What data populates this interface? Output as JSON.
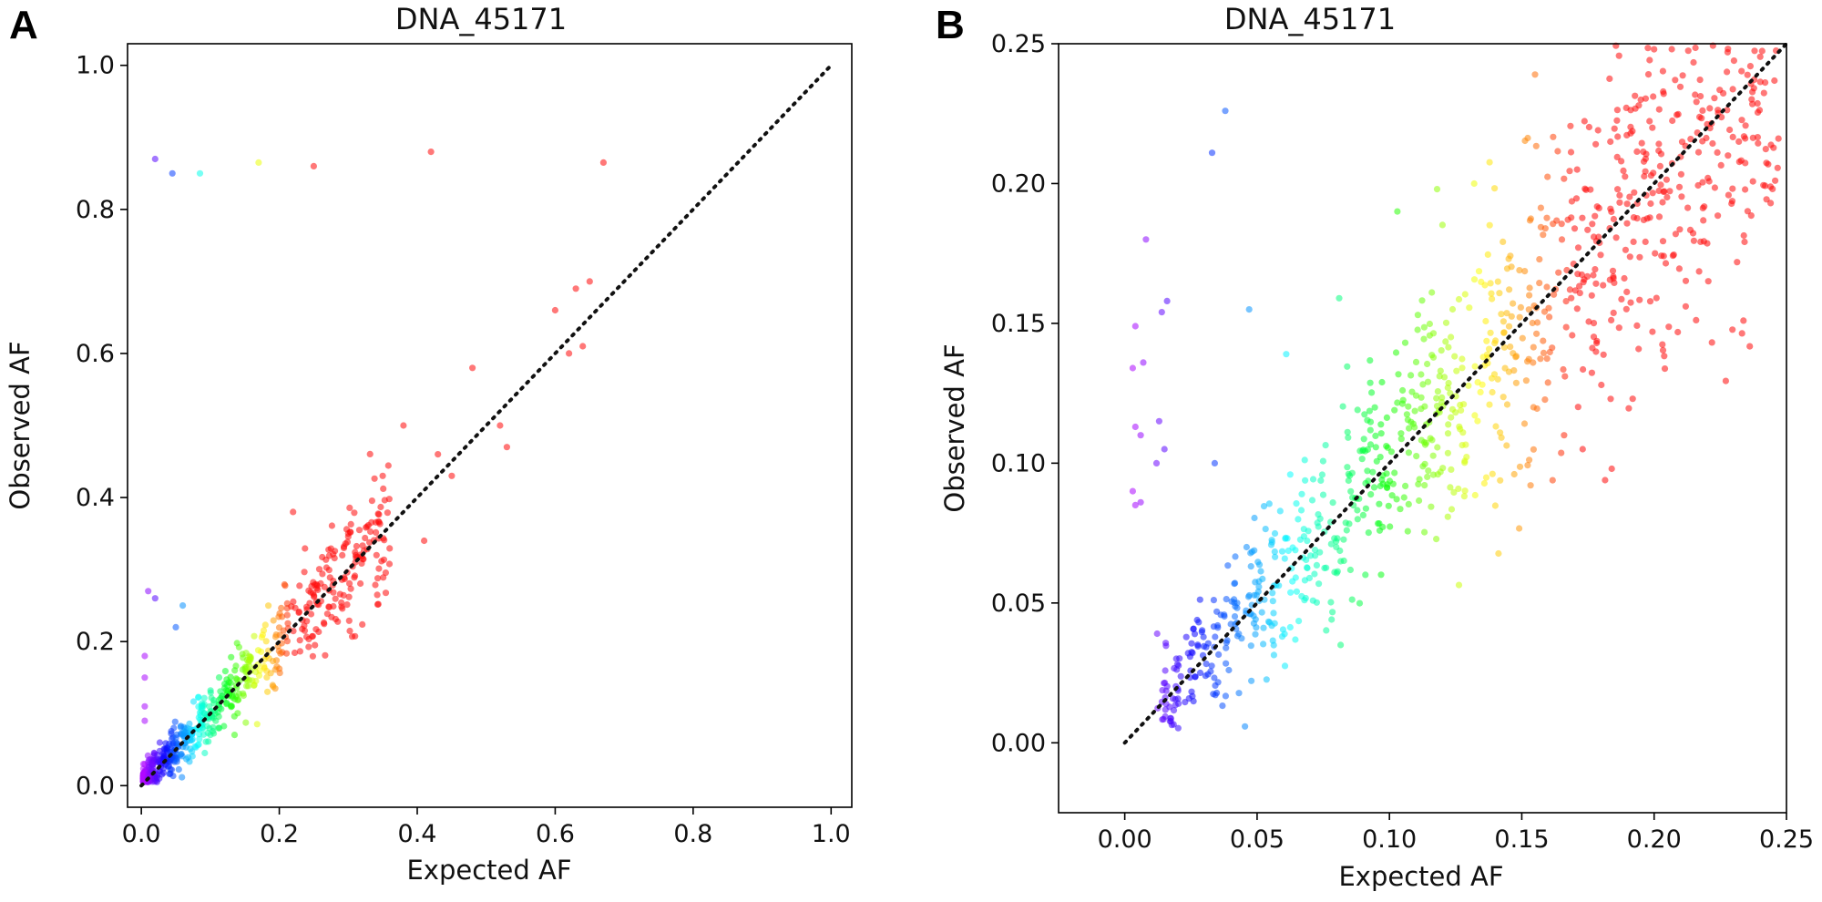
{
  "chart_data": [
    {
      "type": "scatter",
      "panel": "A",
      "title": "DNA_45171",
      "xlabel": "Expected AF",
      "ylabel": "Observed AF",
      "xlim": [
        -0.02,
        1.03
      ],
      "ylim": [
        -0.03,
        1.03
      ],
      "xticks": [
        "0.0",
        "0.2",
        "0.4",
        "0.6",
        "0.8",
        "1.0"
      ],
      "yticks": [
        "0.0",
        "0.2",
        "0.4",
        "0.6",
        "0.8",
        "1.0"
      ],
      "reference_line": {
        "style": "dotted",
        "color": "#111111",
        "from": [
          0,
          0
        ],
        "to": [
          1,
          1
        ]
      },
      "color_scale": "rainbow (purple → blue → cyan → green → yellow → orange → red)",
      "outliers": [
        {
          "x": 0.02,
          "y": 0.87
        },
        {
          "x": 0.045,
          "y": 0.85
        },
        {
          "x": 0.085,
          "y": 0.85
        },
        {
          "x": 0.17,
          "y": 0.865
        },
        {
          "x": 0.25,
          "y": 0.86
        },
        {
          "x": 0.42,
          "y": 0.88
        },
        {
          "x": 0.67,
          "y": 0.865
        },
        {
          "x": 0.01,
          "y": 0.27
        },
        {
          "x": 0.02,
          "y": 0.26
        },
        {
          "x": 0.005,
          "y": 0.18
        },
        {
          "x": 0.005,
          "y": 0.15
        },
        {
          "x": 0.005,
          "y": 0.11
        },
        {
          "x": 0.005,
          "y": 0.09
        },
        {
          "x": 0.6,
          "y": 0.66
        },
        {
          "x": 0.63,
          "y": 0.69
        },
        {
          "x": 0.65,
          "y": 0.7
        },
        {
          "x": 0.62,
          "y": 0.6
        },
        {
          "x": 0.64,
          "y": 0.61
        },
        {
          "x": 0.48,
          "y": 0.58
        },
        {
          "x": 0.38,
          "y": 0.5
        },
        {
          "x": 0.43,
          "y": 0.46
        },
        {
          "x": 0.41,
          "y": 0.34
        },
        {
          "x": 0.52,
          "y": 0.5
        },
        {
          "x": 0.53,
          "y": 0.47
        },
        {
          "x": 0.45,
          "y": 0.43
        },
        {
          "x": 0.35,
          "y": 0.43
        },
        {
          "x": 0.22,
          "y": 0.38
        },
        {
          "x": 0.3,
          "y": 0.35
        },
        {
          "x": 0.06,
          "y": 0.25
        },
        {
          "x": 0.05,
          "y": 0.22
        }
      ],
      "cluster": {
        "x_range": [
          0.0,
          0.4
        ],
        "note": "dense point cloud along y = x",
        "n_points": 700
      }
    },
    {
      "type": "scatter",
      "panel": "B",
      "title": "DNA_45171",
      "xlabel": "Expected AF",
      "ylabel": "Observed AF",
      "xlim": [
        -0.025,
        0.25
      ],
      "ylim": [
        -0.025,
        0.25
      ],
      "xticks": [
        "0.00",
        "0.05",
        "0.10",
        "0.15",
        "0.20",
        "0.25"
      ],
      "yticks": [
        "0.00",
        "0.05",
        "0.10",
        "0.15",
        "0.20",
        "0.25"
      ],
      "reference_line": {
        "style": "dotted",
        "color": "#111111",
        "from": [
          0,
          0
        ],
        "to": [
          0.25,
          0.25
        ]
      },
      "color_scale": "rainbow (purple → blue → cyan → green → yellow → orange → red)",
      "outliers": [
        {
          "x": 0.008,
          "y": 0.18
        },
        {
          "x": 0.004,
          "y": 0.149
        },
        {
          "x": 0.003,
          "y": 0.134
        },
        {
          "x": 0.007,
          "y": 0.136
        },
        {
          "x": 0.004,
          "y": 0.113
        },
        {
          "x": 0.006,
          "y": 0.11
        },
        {
          "x": 0.003,
          "y": 0.09
        },
        {
          "x": 0.006,
          "y": 0.086
        },
        {
          "x": 0.004,
          "y": 0.085
        },
        {
          "x": 0.014,
          "y": 0.154
        },
        {
          "x": 0.016,
          "y": 0.158
        },
        {
          "x": 0.013,
          "y": 0.115
        },
        {
          "x": 0.012,
          "y": 0.1
        },
        {
          "x": 0.015,
          "y": 0.105
        },
        {
          "x": 0.038,
          "y": 0.226
        },
        {
          "x": 0.033,
          "y": 0.211
        },
        {
          "x": 0.034,
          "y": 0.1
        },
        {
          "x": 0.047,
          "y": 0.155
        },
        {
          "x": 0.061,
          "y": 0.139
        },
        {
          "x": 0.081,
          "y": 0.159
        },
        {
          "x": 0.103,
          "y": 0.19
        },
        {
          "x": 0.118,
          "y": 0.198
        },
        {
          "x": 0.155,
          "y": 0.239
        },
        {
          "x": 0.2,
          "y": 0.248
        },
        {
          "x": 0.244,
          "y": 0.193
        },
        {
          "x": 0.232,
          "y": 0.215
        },
        {
          "x": 0.166,
          "y": 0.11
        },
        {
          "x": 0.173,
          "y": 0.105
        },
        {
          "x": 0.184,
          "y": 0.098
        },
        {
          "x": 0.132,
          "y": 0.2
        }
      ],
      "cluster": {
        "x_range": [
          0.0,
          0.25
        ],
        "note": "dense point cloud along y = x",
        "n_points": 1000
      }
    }
  ]
}
